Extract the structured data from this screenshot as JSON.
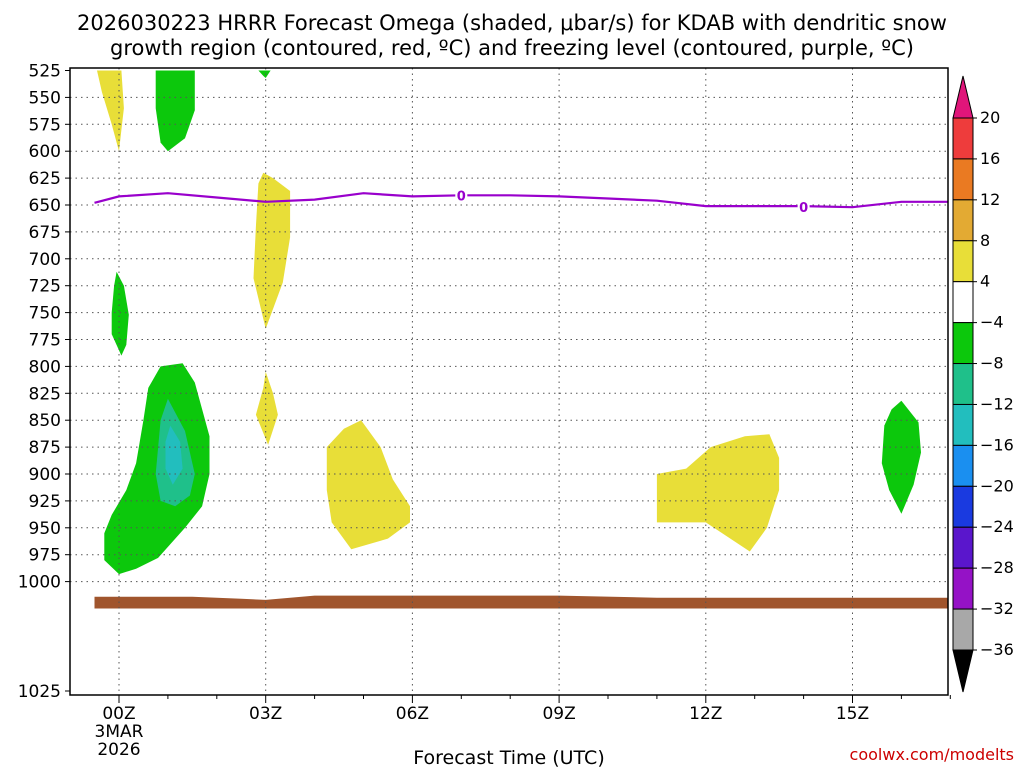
{
  "chart_data": {
    "type": "area",
    "title_line1": "2026030223 HRRR Forecast Omega (shaded, μbar/s) for KDAB with dendritic snow",
    "title_line2": "growth region (contoured, red, ºC) and freezing level (contoured, purple, ºC)",
    "xlabel": "Forecast Time (UTC)",
    "credit": "coolwx.com/modelts",
    "x_range": [
      -0.5,
      17.0
    ],
    "y_range": [
      525,
      1025
    ],
    "y_ticks": [
      525,
      550,
      575,
      600,
      625,
      650,
      675,
      700,
      725,
      750,
      775,
      800,
      825,
      850,
      875,
      900,
      925,
      950,
      975,
      1000,
      1025
    ],
    "x_ticks": [
      {
        "hour": 0,
        "label": "00Z"
      },
      {
        "hour": 3,
        "label": "03Z"
      },
      {
        "hour": 6,
        "label": "06Z"
      },
      {
        "hour": 9,
        "label": "09Z"
      },
      {
        "hour": 12,
        "label": "12Z"
      },
      {
        "hour": 15,
        "label": "15Z"
      }
    ],
    "date_label": [
      "3MAR",
      "2026"
    ],
    "colorbar": {
      "levels": [
        {
          "from": 20,
          "to": null,
          "color": "#e0157a"
        },
        {
          "from": 16,
          "to": 20,
          "color": "#ee3c3c"
        },
        {
          "from": 12,
          "to": 16,
          "color": "#ea7a22"
        },
        {
          "from": 8,
          "to": 12,
          "color": "#e3aa33"
        },
        {
          "from": 4,
          "to": 8,
          "color": "#e8de38"
        },
        {
          "from": -4,
          "to": 4,
          "color": "#ffffff"
        },
        {
          "from": -8,
          "to": -4,
          "color": "#0cc80c"
        },
        {
          "from": -12,
          "to": -8,
          "color": "#1fc08a"
        },
        {
          "from": -16,
          "to": -12,
          "color": "#22bebe"
        },
        {
          "from": -20,
          "to": -16,
          "color": "#1a8ff0"
        },
        {
          "from": -24,
          "to": -20,
          "color": "#1a3ae0"
        },
        {
          "from": -28,
          "to": -24,
          "color": "#5a16cc"
        },
        {
          "from": -32,
          "to": -28,
          "color": "#9512c6"
        },
        {
          "from": -36,
          "to": -32,
          "color": "#a8a8a8"
        },
        {
          "from": null,
          "to": -36,
          "color": "#000000"
        }
      ],
      "tick_labels": [
        "20",
        "16",
        "12",
        "8",
        "4",
        "−4",
        "−8",
        "−12",
        "−16",
        "−20",
        "−24",
        "−28",
        "−32",
        "−36"
      ]
    },
    "shaded_regions": [
      {
        "name": "pos-0z-upper",
        "color": "#e8de38",
        "points": [
          [
            -0.45,
            525
          ],
          [
            0.05,
            525
          ],
          [
            0.1,
            560
          ],
          [
            0.05,
            580
          ],
          [
            0,
            600
          ],
          [
            -0.15,
            575
          ],
          [
            -0.35,
            545
          ]
        ]
      },
      {
        "name": "neg-1z-upper",
        "color": "#0cc80c",
        "points": [
          [
            0.75,
            525
          ],
          [
            1.55,
            525
          ],
          [
            1.55,
            562
          ],
          [
            1.35,
            588
          ],
          [
            1.0,
            600
          ],
          [
            0.85,
            592
          ],
          [
            0.75,
            560
          ]
        ]
      },
      {
        "name": "neg-3z-top",
        "color": "#0cc80c",
        "points": [
          [
            2.85,
            525
          ],
          [
            3.1,
            525
          ],
          [
            3.0,
            532
          ],
          [
            2.95,
            530
          ]
        ]
      },
      {
        "name": "pos-3z-mid",
        "color": "#e8de38",
        "points": [
          [
            2.95,
            620
          ],
          [
            3.15,
            625
          ],
          [
            3.5,
            637
          ],
          [
            3.5,
            680
          ],
          [
            3.35,
            722
          ],
          [
            3.0,
            765
          ],
          [
            2.75,
            718
          ],
          [
            2.8,
            670
          ],
          [
            2.85,
            630
          ]
        ]
      },
      {
        "name": "neg-0z-mid",
        "color": "#0cc80c",
        "points": [
          [
            -0.05,
            712
          ],
          [
            0.1,
            725
          ],
          [
            0.2,
            752
          ],
          [
            0.15,
            780
          ],
          [
            0.05,
            790
          ],
          [
            -0.15,
            770
          ],
          [
            -0.15,
            750
          ],
          [
            -0.1,
            725
          ]
        ]
      },
      {
        "name": "pos-3z-low",
        "color": "#e8de38",
        "points": [
          [
            3.0,
            805
          ],
          [
            3.15,
            825
          ],
          [
            3.25,
            845
          ],
          [
            3.05,
            873
          ],
          [
            2.8,
            845
          ],
          [
            2.95,
            820
          ]
        ]
      },
      {
        "name": "neg-1z-low",
        "color": "#0cc80c",
        "points": [
          [
            0.85,
            800
          ],
          [
            1.3,
            797
          ],
          [
            1.55,
            815
          ],
          [
            1.85,
            865
          ],
          [
            1.85,
            900
          ],
          [
            1.7,
            930
          ],
          [
            1.35,
            950
          ],
          [
            0.8,
            978
          ],
          [
            0.35,
            988
          ],
          [
            0,
            993
          ],
          [
            -0.3,
            980
          ],
          [
            -0.3,
            955
          ],
          [
            -0.15,
            938
          ],
          [
            0.15,
            915
          ],
          [
            0.35,
            890
          ],
          [
            0.5,
            850
          ],
          [
            0.6,
            820
          ]
        ]
      },
      {
        "name": "neg-1z-core",
        "color": "#1fc08a",
        "points": [
          [
            1.0,
            830
          ],
          [
            1.35,
            860
          ],
          [
            1.55,
            900
          ],
          [
            1.45,
            920
          ],
          [
            1.15,
            930
          ],
          [
            0.85,
            925
          ],
          [
            0.75,
            900
          ],
          [
            0.85,
            850
          ]
        ]
      },
      {
        "name": "neg-1z-core2",
        "color": "#22bebe",
        "points": [
          [
            1.05,
            855
          ],
          [
            1.25,
            870
          ],
          [
            1.3,
            895
          ],
          [
            1.1,
            910
          ],
          [
            0.95,
            895
          ],
          [
            0.95,
            870
          ]
        ]
      },
      {
        "name": "pos-5z",
        "color": "#e8de38",
        "points": [
          [
            4.6,
            858
          ],
          [
            4.95,
            850
          ],
          [
            5.35,
            875
          ],
          [
            5.6,
            905
          ],
          [
            5.95,
            930
          ],
          [
            5.95,
            945
          ],
          [
            5.5,
            960
          ],
          [
            4.75,
            970
          ],
          [
            4.35,
            945
          ],
          [
            4.25,
            915
          ],
          [
            4.25,
            875
          ]
        ]
      },
      {
        "name": "pos-12z",
        "color": "#e8de38",
        "points": [
          [
            11.0,
            900
          ],
          [
            11.6,
            895
          ],
          [
            12.1,
            875
          ],
          [
            12.8,
            865
          ],
          [
            13.3,
            863
          ],
          [
            13.5,
            885
          ],
          [
            13.5,
            915
          ],
          [
            13.25,
            950
          ],
          [
            12.9,
            972
          ],
          [
            12.0,
            945
          ],
          [
            11.5,
            945
          ],
          [
            11.0,
            945
          ]
        ]
      },
      {
        "name": "neg-16z",
        "color": "#0cc80c",
        "points": [
          [
            15.8,
            840
          ],
          [
            16.0,
            832
          ],
          [
            16.35,
            852
          ],
          [
            16.4,
            880
          ],
          [
            16.25,
            910
          ],
          [
            16.0,
            937
          ],
          [
            15.75,
            915
          ],
          [
            15.6,
            890
          ],
          [
            15.65,
            855
          ]
        ]
      },
      {
        "name": "terrain",
        "color": "#a0552d",
        "points": [
          [
            -0.5,
            1014
          ],
          [
            1.5,
            1014
          ],
          [
            2.5,
            1016
          ],
          [
            3.0,
            1017
          ],
          [
            4.0,
            1013
          ],
          [
            9.0,
            1013
          ],
          [
            11.0,
            1015
          ],
          [
            17.0,
            1015
          ],
          [
            17.0,
            1025
          ],
          [
            -0.5,
            1025
          ]
        ]
      }
    ],
    "freezing_level": {
      "label": "0",
      "color": "#9900cc",
      "points": [
        [
          -0.5,
          648
        ],
        [
          0,
          642
        ],
        [
          1,
          639
        ],
        [
          2,
          643
        ],
        [
          3,
          647
        ],
        [
          4,
          645
        ],
        [
          5,
          639
        ],
        [
          6,
          642
        ],
        [
          7,
          641
        ],
        [
          8,
          641
        ],
        [
          9,
          642
        ],
        [
          10,
          644
        ],
        [
          11,
          646
        ],
        [
          12,
          651
        ],
        [
          13,
          651
        ],
        [
          14,
          651
        ],
        [
          15,
          652
        ],
        [
          16,
          647
        ],
        [
          17,
          647
        ]
      ],
      "label_positions": [
        [
          7.0,
          641
        ],
        [
          14.0,
          652
        ]
      ]
    }
  }
}
